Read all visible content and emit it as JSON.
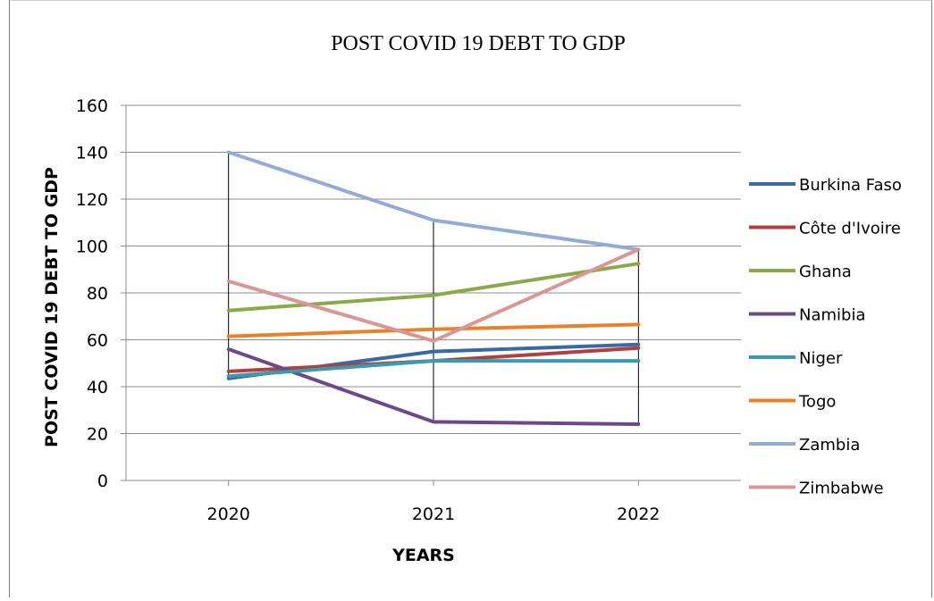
{
  "chart_data": {
    "type": "line",
    "title": "POST COVID 19 DEBT TO GDP",
    "xlabel": "YEARS",
    "ylabel": "POST COVID 19 DEBT TO GDP",
    "categories": [
      "2020",
      "2021",
      "2022"
    ],
    "ylim": [
      0,
      160
    ],
    "yticks": [
      0,
      20,
      40,
      60,
      80,
      100,
      120,
      140,
      160
    ],
    "grid": "horizontal",
    "drop_lines": true,
    "legend_position": "right",
    "series": [
      {
        "name": "Burkina Faso",
        "color": "#3a6aa3",
        "values": [
          43.5,
          55,
          58
        ]
      },
      {
        "name": "Côte d'Ivoire",
        "color": "#b0413e",
        "values": [
          46.5,
          51,
          56.5
        ]
      },
      {
        "name": "Ghana",
        "color": "#8aaa4a",
        "values": [
          72.5,
          79,
          92.5
        ]
      },
      {
        "name": "Namibia",
        "color": "#6c4a8a",
        "values": [
          56,
          25,
          24
        ]
      },
      {
        "name": "Niger",
        "color": "#3a9bb0",
        "values": [
          44.5,
          51,
          51
        ]
      },
      {
        "name": "Togo",
        "color": "#e8822a",
        "values": [
          61.5,
          64.5,
          66.5
        ]
      },
      {
        "name": "Zambia",
        "color": "#93acd6",
        "values": [
          140,
          111,
          98.5
        ]
      },
      {
        "name": "Zimbabwe",
        "color": "#d99694",
        "values": [
          85,
          59.5,
          98.5
        ]
      }
    ]
  }
}
